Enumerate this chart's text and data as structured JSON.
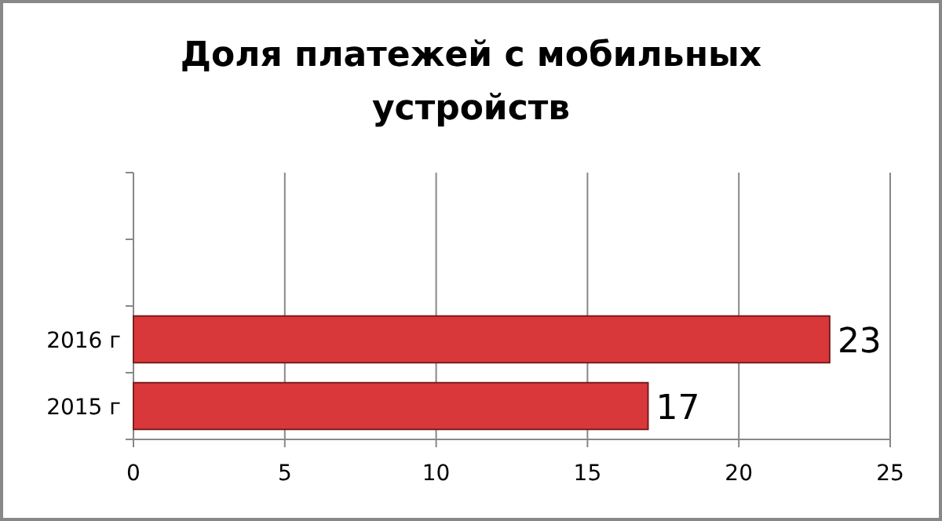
{
  "chart_data": {
    "type": "bar",
    "orientation": "horizontal",
    "title": "Доля платежей с мобильных устройств",
    "categories": [
      null,
      null,
      "2016 г",
      "2015 г"
    ],
    "values": [
      null,
      null,
      23,
      17
    ],
    "color": "#d9383a",
    "xlim": [
      0,
      25
    ],
    "xticks": [
      0,
      5,
      10,
      15,
      20,
      25
    ],
    "grid": "x",
    "data_labels": true
  }
}
